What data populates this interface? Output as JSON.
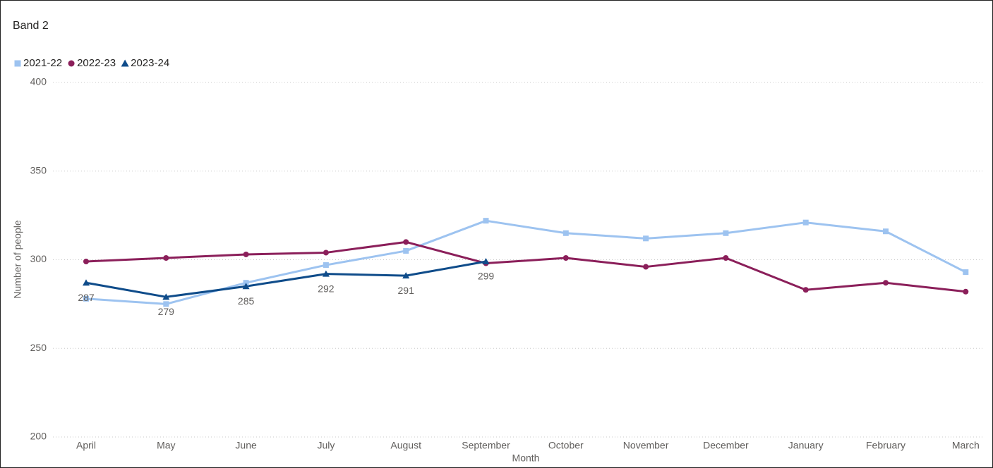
{
  "chart_data": {
    "type": "line",
    "subtitle": "Band 2",
    "x_label": "Month",
    "y_label": "Number of people",
    "categories": [
      "April",
      "May",
      "June",
      "July",
      "August",
      "September",
      "October",
      "November",
      "December",
      "January",
      "February",
      "March"
    ],
    "series": [
      {
        "name": "2021-22",
        "color": "#9dc3f0",
        "marker": "square",
        "values": [
          278,
          275,
          287,
          297,
          305,
          322,
          315,
          312,
          315,
          321,
          316,
          293
        ]
      },
      {
        "name": "2022-23",
        "color": "#8b1f5a",
        "marker": "circle",
        "values": [
          299,
          301,
          303,
          304,
          310,
          298,
          301,
          296,
          301,
          283,
          287,
          282
        ]
      },
      {
        "name": "2023-24",
        "color": "#0f4c8a",
        "marker": "triangle",
        "data_labels": true,
        "values": [
          287,
          279,
          285,
          292,
          291,
          299,
          null,
          null,
          null,
          null,
          null,
          null
        ]
      }
    ],
    "ylim": [
      200,
      400
    ],
    "yticks": [
      200,
      250,
      300,
      350,
      400
    ],
    "grid": true,
    "legend": "top-left"
  }
}
